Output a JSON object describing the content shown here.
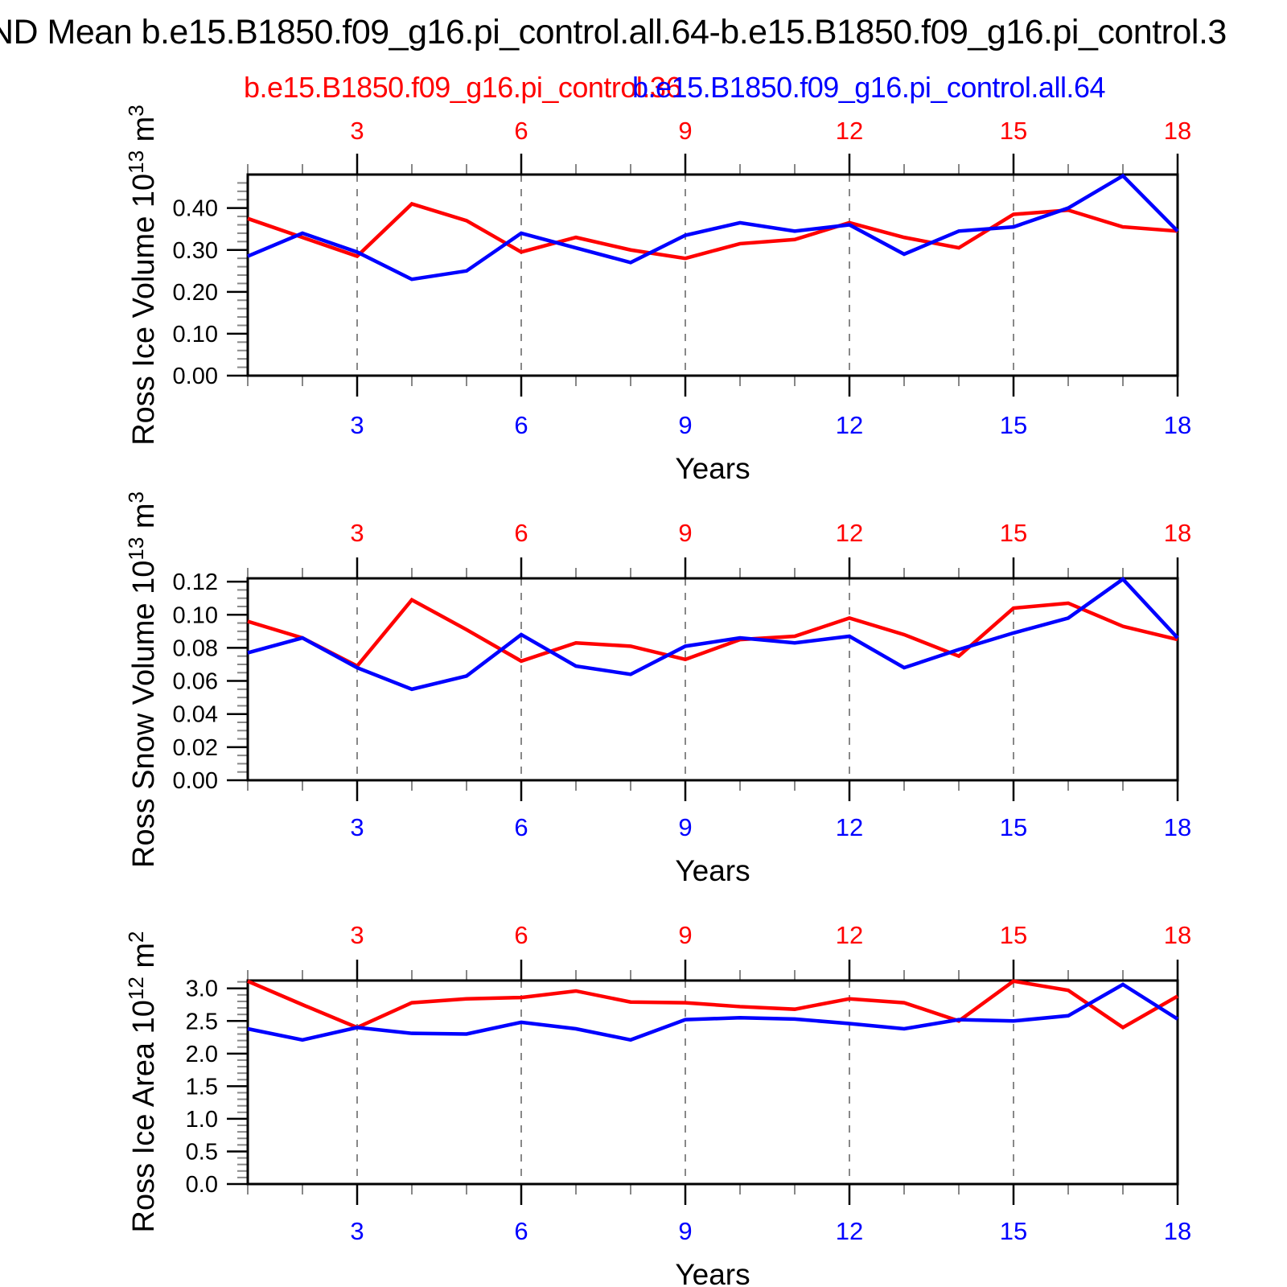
{
  "title": "ND Mean b.e15.B1850.f09_g16.pi_control.all.64-b.e15.B1850.f09_g16.pi_control.3",
  "legend": {
    "red": "b.e15.B1850.f09_g16.pi_control.36",
    "blue": "b.e15.B1850.f09_g16.pi_control.all.64"
  },
  "colors": {
    "red": "#ff0000",
    "blue": "#0000ff",
    "frame": "#000000",
    "grid": "#888888",
    "minor_tick": "#888888",
    "major_tick": "#000000",
    "top_axis_label": "#ff0000",
    "bottom_axis_label": "#0000ff"
  },
  "chart_data": [
    {
      "type": "line",
      "ylabel": "Ross Ice Volume 10^13 m^3",
      "ylabel_parts": [
        {
          "t": "Ross Ice Volume 10"
        },
        {
          "t": "13",
          "sup": true
        },
        {
          "t": " m"
        },
        {
          "t": "3",
          "sup": true
        }
      ],
      "xlabel": "Years",
      "xlim": [
        1,
        18
      ],
      "ylim": [
        0.0,
        0.48
      ],
      "x_major_ticks": [
        3,
        6,
        9,
        12,
        15,
        18
      ],
      "x_gridlines": [
        3,
        6,
        9,
        12,
        15
      ],
      "ytick_values": [
        0.0,
        0.1,
        0.2,
        0.3,
        0.4
      ],
      "ytick_labels": [
        "0.00",
        "0.10",
        "0.20",
        "0.30",
        "0.40"
      ],
      "y_minor_step": 0.02,
      "x": [
        1,
        2,
        3,
        4,
        5,
        6,
        7,
        8,
        9,
        10,
        11,
        12,
        13,
        14,
        15,
        16,
        17,
        18
      ],
      "series": [
        {
          "name": "b.e15.B1850.f09_g16.pi_control.36",
          "color": "red",
          "values": [
            0.375,
            0.33,
            0.285,
            0.41,
            0.37,
            0.295,
            0.33,
            0.3,
            0.28,
            0.315,
            0.325,
            0.365,
            0.33,
            0.305,
            0.385,
            0.395,
            0.355,
            0.345
          ]
        },
        {
          "name": "b.e15.B1850.f09_g16.pi_control.all.64",
          "color": "blue",
          "values": [
            0.285,
            0.34,
            0.295,
            0.23,
            0.25,
            0.34,
            0.305,
            0.27,
            0.335,
            0.365,
            0.345,
            0.36,
            0.29,
            0.345,
            0.355,
            0.4,
            0.477,
            0.345
          ]
        }
      ]
    },
    {
      "type": "line",
      "ylabel": "Ross Snow Volume 10^13 m^3",
      "ylabel_parts": [
        {
          "t": "Ross Snow Volume 10"
        },
        {
          "t": "13",
          "sup": true
        },
        {
          "t": " m"
        },
        {
          "t": "3",
          "sup": true
        }
      ],
      "xlabel": "Years",
      "xlim": [
        1,
        18
      ],
      "ylim": [
        0.0,
        0.122
      ],
      "x_major_ticks": [
        3,
        6,
        9,
        12,
        15,
        18
      ],
      "x_gridlines": [
        3,
        6,
        9,
        12,
        15
      ],
      "ytick_values": [
        0.0,
        0.02,
        0.04,
        0.06,
        0.08,
        0.1,
        0.12
      ],
      "ytick_labels": [
        "0.00",
        "0.02",
        "0.04",
        "0.06",
        "0.08",
        "0.10",
        "0.12"
      ],
      "y_minor_step": 0.005,
      "x": [
        1,
        2,
        3,
        4,
        5,
        6,
        7,
        8,
        9,
        10,
        11,
        12,
        13,
        14,
        15,
        16,
        17,
        18
      ],
      "series": [
        {
          "name": "b.e15.B1850.f09_g16.pi_control.36",
          "color": "red",
          "values": [
            0.096,
            0.086,
            0.069,
            0.109,
            0.091,
            0.072,
            0.083,
            0.081,
            0.073,
            0.085,
            0.087,
            0.098,
            0.088,
            0.075,
            0.104,
            0.107,
            0.093,
            0.085
          ]
        },
        {
          "name": "b.e15.B1850.f09_g16.pi_control.all.64",
          "color": "blue",
          "values": [
            0.077,
            0.086,
            0.068,
            0.055,
            0.063,
            0.088,
            0.069,
            0.064,
            0.081,
            0.086,
            0.083,
            0.087,
            0.068,
            0.079,
            0.089,
            0.098,
            0.1215,
            0.086
          ]
        }
      ]
    },
    {
      "type": "line",
      "ylabel": "Ross Ice Area 10^12 m^2",
      "ylabel_parts": [
        {
          "t": "Ross Ice Area 10"
        },
        {
          "t": "12",
          "sup": true
        },
        {
          "t": " m"
        },
        {
          "t": "2",
          "sup": true
        }
      ],
      "xlabel": "Years",
      "xlim": [
        1,
        18
      ],
      "ylim": [
        0.0,
        3.12
      ],
      "x_major_ticks": [
        3,
        6,
        9,
        12,
        15,
        18
      ],
      "x_gridlines": [
        3,
        6,
        9,
        12,
        15
      ],
      "ytick_values": [
        0.0,
        0.5,
        1.0,
        1.5,
        2.0,
        2.5,
        3.0
      ],
      "ytick_labels": [
        "0.0",
        "0.5",
        "1.0",
        "1.5",
        "2.0",
        "2.5",
        "3.0"
      ],
      "y_minor_step": 0.1,
      "x": [
        1,
        2,
        3,
        4,
        5,
        6,
        7,
        8,
        9,
        10,
        11,
        12,
        13,
        14,
        15,
        16,
        17,
        18
      ],
      "series": [
        {
          "name": "b.e15.B1850.f09_g16.pi_control.36",
          "color": "red",
          "values": [
            3.11,
            2.75,
            2.4,
            2.78,
            2.84,
            2.86,
            2.96,
            2.79,
            2.78,
            2.72,
            2.68,
            2.84,
            2.78,
            2.5,
            3.11,
            2.97,
            2.4,
            2.88
          ]
        },
        {
          "name": "b.e15.B1850.f09_g16.pi_control.all.64",
          "color": "blue",
          "values": [
            2.38,
            2.21,
            2.4,
            2.31,
            2.3,
            2.48,
            2.38,
            2.21,
            2.52,
            2.55,
            2.53,
            2.46,
            2.38,
            2.52,
            2.5,
            2.58,
            3.06,
            2.53
          ]
        }
      ]
    }
  ]
}
